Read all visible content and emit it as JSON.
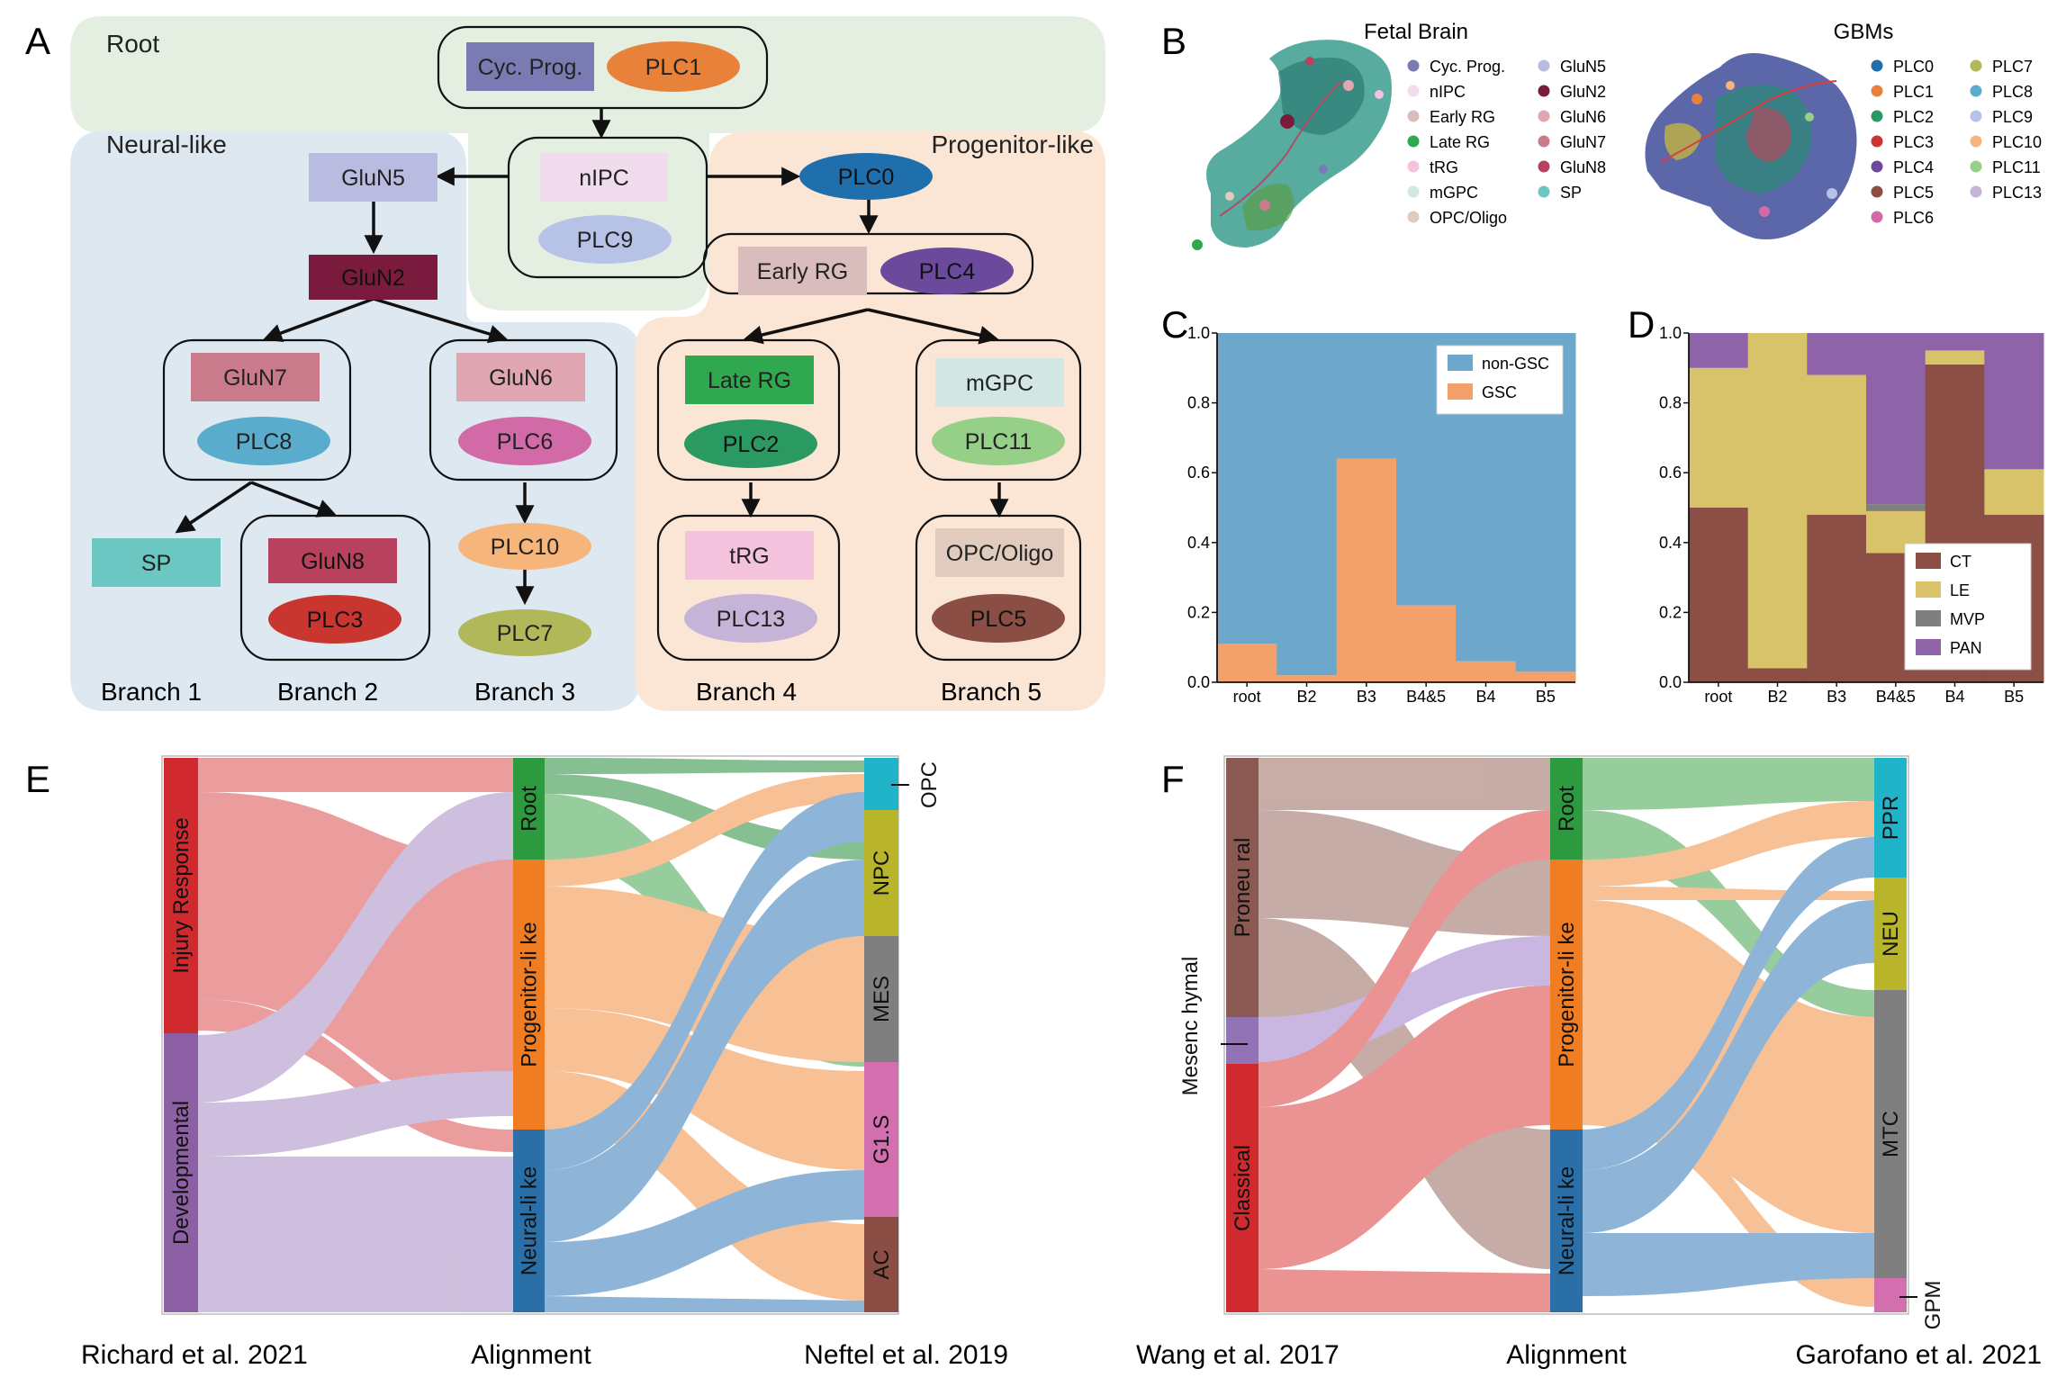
{
  "panel_letters": {
    "A": "A",
    "B": "B",
    "C": "C",
    "D": "D",
    "E": "E",
    "F": "F"
  },
  "panelA": {
    "regions": {
      "root": "Root",
      "neural": "Neural-like",
      "progenitor": "Progenitor-like"
    },
    "branches": [
      "Branch 1",
      "Branch 2",
      "Branch 3",
      "Branch 4",
      "Branch 5"
    ],
    "labels": {
      "cyc": "Cyc. Prog.",
      "plc1": "PLC1",
      "nipc": "nIPC",
      "plc9": "PLC9",
      "glun5": "GluN5",
      "glun2": "GluN2",
      "glun7": "GluN7",
      "plc8": "PLC8",
      "glun6": "GluN6",
      "plc6": "PLC6",
      "sp": "SP",
      "glun8": "GluN8",
      "plc3": "PLC3",
      "plc10": "PLC10",
      "plc7": "PLC7",
      "plc0": "PLC0",
      "earlyrg": "Early RG",
      "plc4": "PLC4",
      "laterg": "Late RG",
      "plc2": "PLC2",
      "trg": "tRG",
      "plc13": "PLC13",
      "mgpc": "mGPC",
      "plc11": "PLC11",
      "opc": "OPC/Oligo",
      "plc5": "PLC5"
    },
    "colors": {
      "cyc": "#7b7bb3",
      "plc1": "#e8823a",
      "nipc": "#f0dced",
      "plc9": "#b6c3e6",
      "glun5": "#b9bbe0",
      "glun2": "#7a1a3c",
      "glun7": "#c97b8c",
      "plc8": "#5aaccc",
      "glun6": "#e0a7b2",
      "plc6": "#d26aa8",
      "sp": "#6cc6c2",
      "glun8": "#b8425e",
      "plc3": "#c9362f",
      "plc10": "#f6b57a",
      "plc7": "#b0b85a",
      "plc0": "#1f6fad",
      "earlyrg": "#d9bcbc",
      "plc4": "#6b4a9c",
      "laterg": "#2fa84f",
      "plc2": "#2a9a62",
      "trg": "#f3c3dd",
      "plc13": "#c5b3d8",
      "mgpc": "#d2e6e3",
      "plc11": "#96cf88",
      "opc": "#e1cbbf",
      "plc5": "#8a4e45"
    }
  },
  "panelB": {
    "fetal_title": "Fetal Brain",
    "gbm_title": "GBMs",
    "fetal_legend": [
      {
        "label": "Cyc. Prog.",
        "color": "#7b7bb3"
      },
      {
        "label": "nIPC",
        "color": "#f0dced"
      },
      {
        "label": "Early RG",
        "color": "#d9bcbc"
      },
      {
        "label": "Late RG",
        "color": "#2fa84f"
      },
      {
        "label": "tRG",
        "color": "#f3c3dd"
      },
      {
        "label": "mGPC",
        "color": "#d2e6e3"
      },
      {
        "label": "OPC/Oligo",
        "color": "#e1cbbf"
      },
      {
        "label": "GluN5",
        "color": "#b9bbe0"
      },
      {
        "label": "GluN2",
        "color": "#7a1a3c"
      },
      {
        "label": "GluN6",
        "color": "#e0a7b2"
      },
      {
        "label": "GluN7",
        "color": "#c97b8c"
      },
      {
        "label": "GluN8",
        "color": "#b8425e"
      },
      {
        "label": "SP",
        "color": "#6cc6c2"
      }
    ],
    "gbm_legend": [
      {
        "label": "PLC0",
        "color": "#1f6fad"
      },
      {
        "label": "PLC1",
        "color": "#e8823a"
      },
      {
        "label": "PLC2",
        "color": "#2a9a62"
      },
      {
        "label": "PLC3",
        "color": "#c9362f"
      },
      {
        "label": "PLC4",
        "color": "#6b4a9c"
      },
      {
        "label": "PLC5",
        "color": "#8a4e45"
      },
      {
        "label": "PLC6",
        "color": "#d26aa8"
      },
      {
        "label": "PLC7",
        "color": "#b0b85a"
      },
      {
        "label": "PLC8",
        "color": "#5aaccc"
      },
      {
        "label": "PLC9",
        "color": "#b6c3e6"
      },
      {
        "label": "PLC10",
        "color": "#f6b57a"
      },
      {
        "label": "PLC11",
        "color": "#96cf88"
      },
      {
        "label": "PLC13",
        "color": "#c5b3d8"
      }
    ]
  },
  "chart_data": [
    {
      "type": "bar",
      "panel": "C",
      "stacked": true,
      "categories": [
        "root",
        "B2",
        "B3",
        "B4&5",
        "B4",
        "B5"
      ],
      "series": [
        {
          "name": "GSC",
          "color": "#f4a06a",
          "values": [
            0.11,
            0.02,
            0.64,
            0.22,
            0.06,
            0.03
          ]
        },
        {
          "name": "non-GSC",
          "color": "#6ea7cc",
          "values": [
            0.89,
            0.98,
            0.36,
            0.78,
            0.94,
            0.97
          ]
        }
      ],
      "ylim": [
        0,
        1
      ],
      "yticks": [
        "0.0",
        "0.2",
        "0.4",
        "0.6",
        "0.8",
        "1.0"
      ],
      "legend_position": "top-right"
    },
    {
      "type": "bar",
      "panel": "D",
      "stacked": true,
      "categories": [
        "root",
        "B2",
        "B3",
        "B4&5",
        "B4",
        "B5"
      ],
      "series": [
        {
          "name": "CT",
          "color": "#8b4f45",
          "values": [
            0.5,
            0.04,
            0.48,
            0.37,
            0.91,
            0.48
          ]
        },
        {
          "name": "LE",
          "color": "#d8c26a",
          "values": [
            0.4,
            0.96,
            0.4,
            0.12,
            0.04,
            0.13
          ]
        },
        {
          "name": "MVP",
          "color": "#7f7f7f",
          "values": [
            0.0,
            0.0,
            0.0,
            0.02,
            0.0,
            0.0
          ]
        },
        {
          "name": "PAN",
          "color": "#8f63a8",
          "values": [
            0.1,
            0.0,
            0.12,
            0.49,
            0.05,
            0.39
          ]
        }
      ],
      "ylim": [
        0,
        1
      ],
      "yticks": [
        "0.0",
        "0.2",
        "0.4",
        "0.6",
        "0.8",
        "1.0"
      ],
      "legend_position": "bottom-right"
    }
  ],
  "panelE": {
    "left_title": "Richard et al. 2021",
    "mid_title": "Alignment",
    "right_title": "Neftel et al. 2019",
    "left": [
      {
        "label": "Injury Response",
        "color": "#d02a2e"
      },
      {
        "label": "Developmental",
        "color": "#8d60a6"
      }
    ],
    "mid": [
      {
        "label": "Root",
        "color": "#2e9a3f"
      },
      {
        "label": "Progenitor-li ke",
        "color": "#f07d22"
      },
      {
        "label": "Neural-li ke",
        "color": "#2a6fa8"
      }
    ],
    "right": [
      {
        "label": "OPC",
        "color": "#1fb4c8"
      },
      {
        "label": "NPC",
        "color": "#b8b52a"
      },
      {
        "label": "MES",
        "color": "#7f7f7f"
      },
      {
        "label": "G1.S",
        "color": "#d36fae"
      },
      {
        "label": "AC",
        "color": "#8a4e45"
      }
    ]
  },
  "panelF": {
    "left_title": "Wang et al. 2017",
    "mid_title": "Alignment",
    "right_title": "Garofano et al. 2021",
    "left": [
      {
        "label": "Proneu ral",
        "color": "#8a5a52"
      },
      {
        "label": "Mesenc hymal",
        "color": "#9273b5"
      },
      {
        "label": "Classical",
        "color": "#d02a2e"
      }
    ],
    "mid": [
      {
        "label": "Root",
        "color": "#2e9a3f"
      },
      {
        "label": "Progenitor-li ke",
        "color": "#f07d22"
      },
      {
        "label": "Neural-li ke",
        "color": "#2a6fa8"
      }
    ],
    "right": [
      {
        "label": "PPR",
        "color": "#1fb4c8"
      },
      {
        "label": "NEU",
        "color": "#b8b52a"
      },
      {
        "label": "MTC",
        "color": "#7f7f7f"
      },
      {
        "label": "GPM",
        "color": "#d36fae"
      }
    ]
  }
}
